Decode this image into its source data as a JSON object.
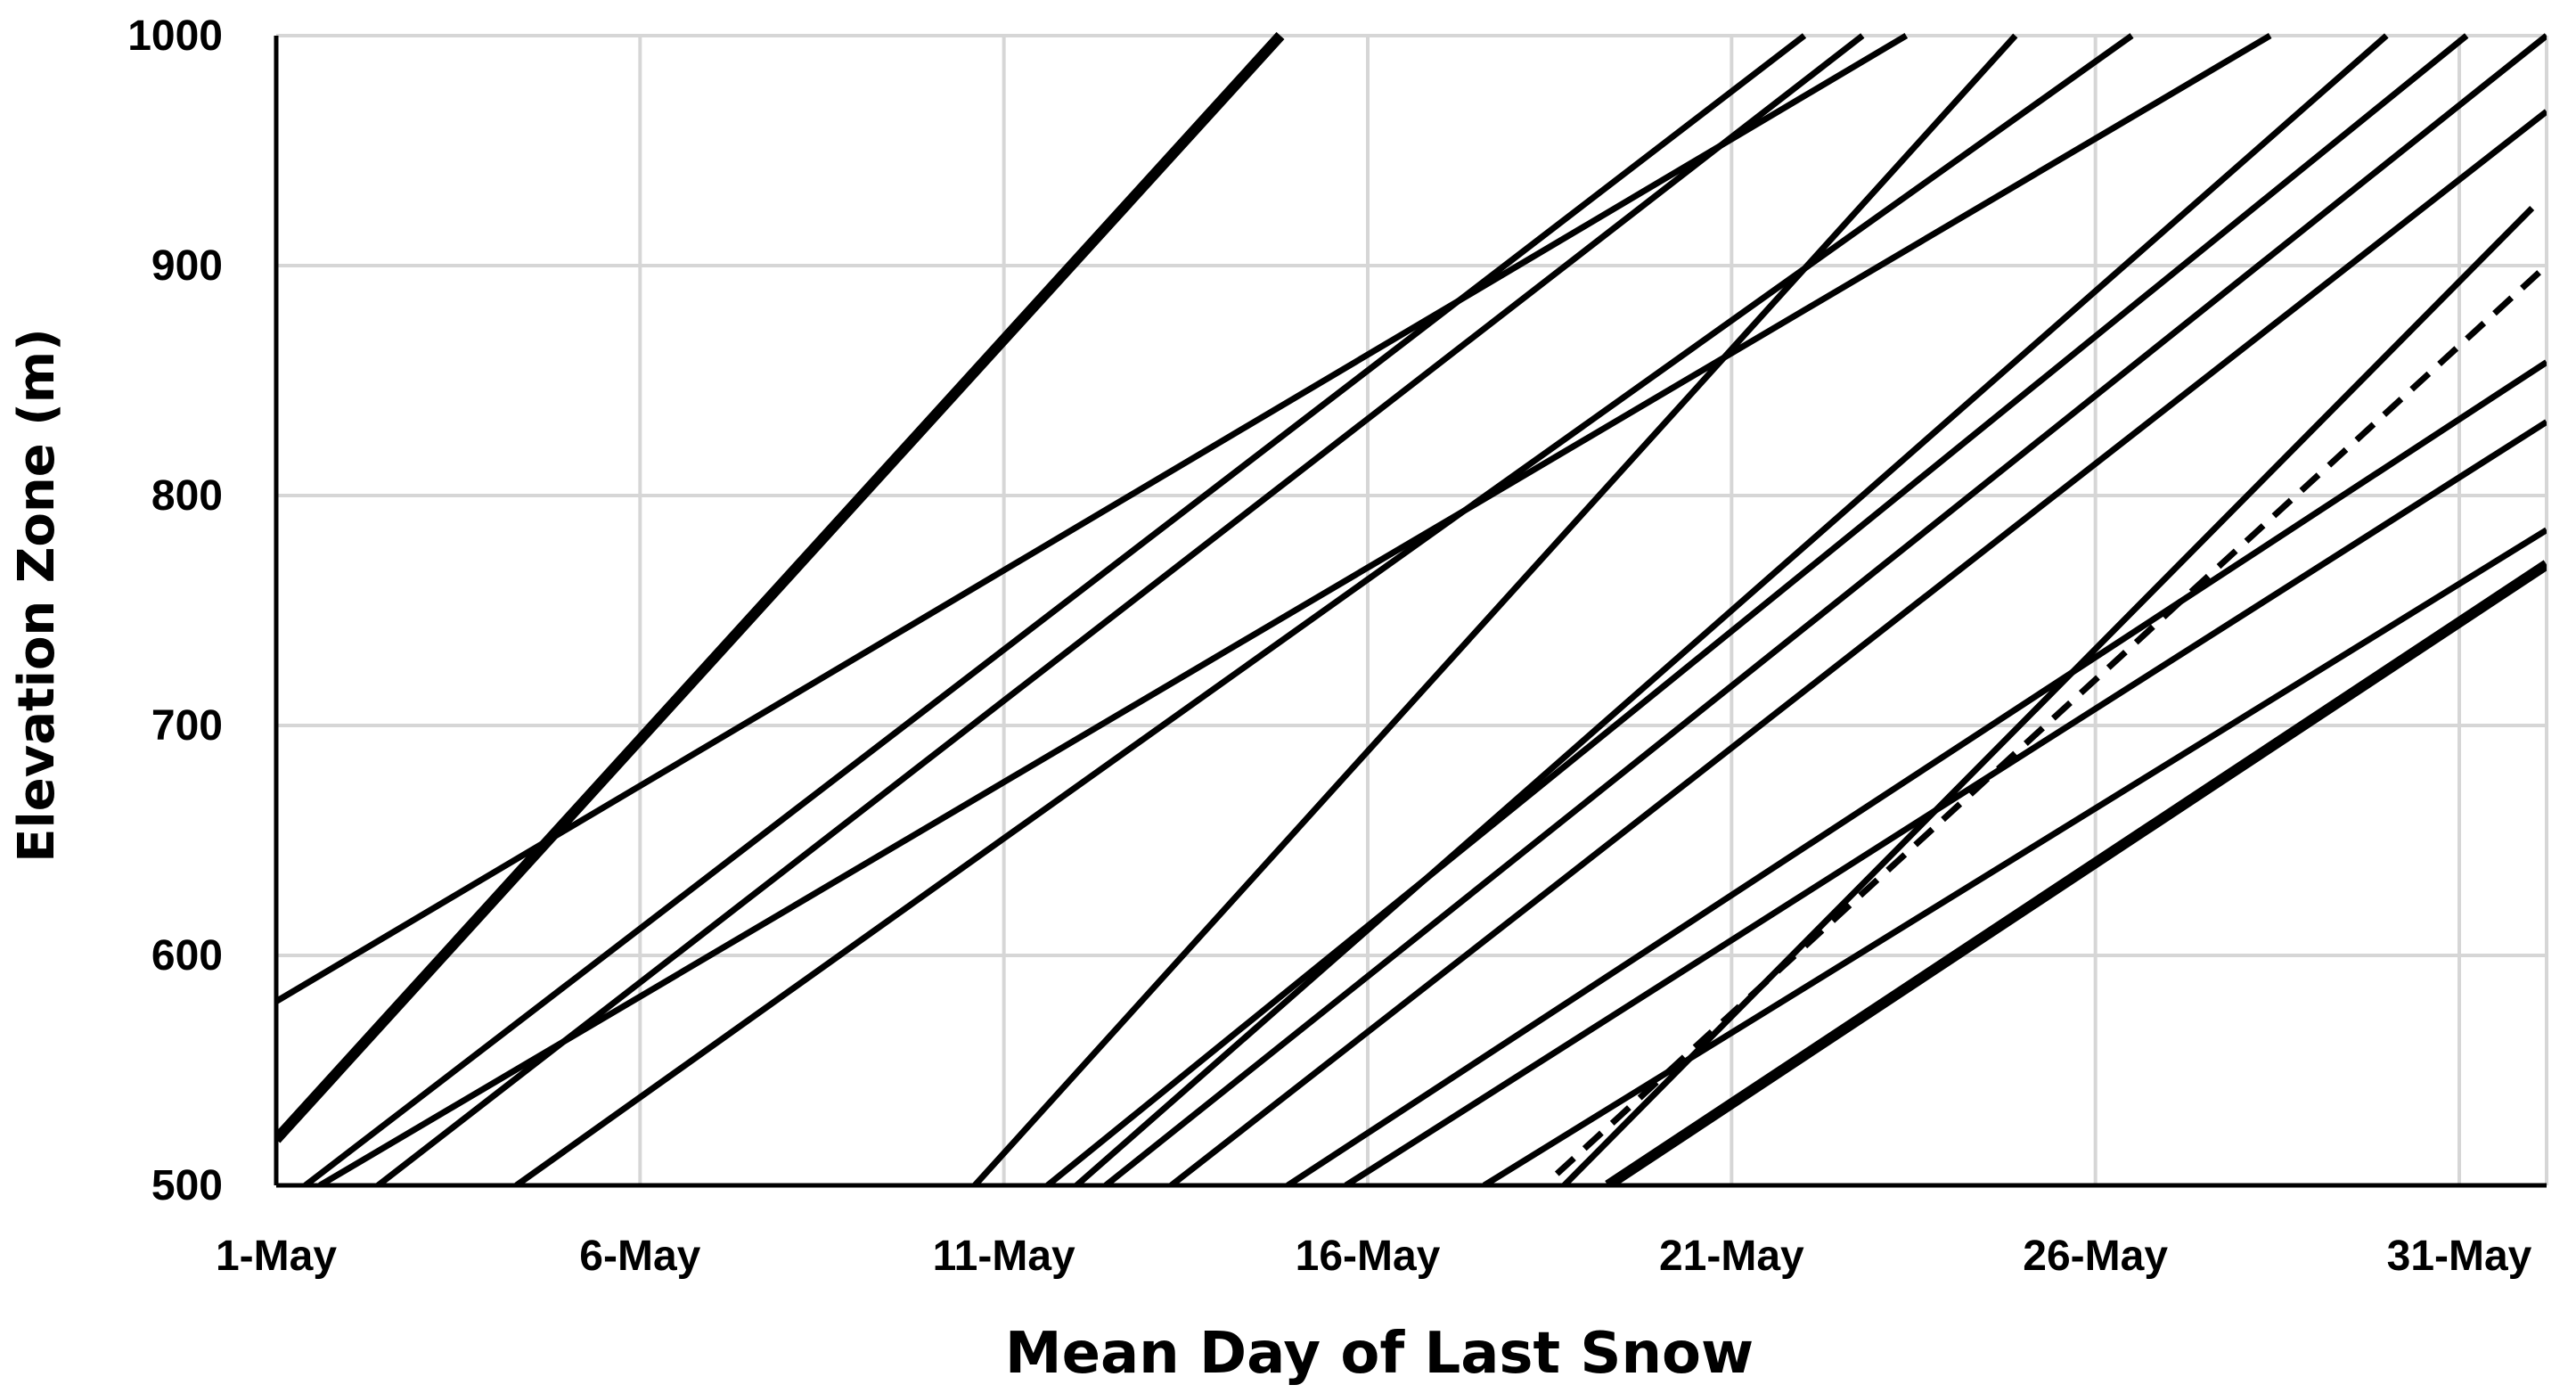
{
  "chart_data": {
    "type": "line",
    "title": "",
    "xlabel": "Mean Day of Last Snow",
    "ylabel": "Elevation Zone (m)",
    "x_unit": "day of May",
    "xlim": [
      1,
      32.2
    ],
    "ylim": [
      500,
      1000
    ],
    "x_ticks": [
      {
        "value": 1,
        "label": "1-May"
      },
      {
        "value": 6,
        "label": "6-May"
      },
      {
        "value": 11,
        "label": "11-May"
      },
      {
        "value": 16,
        "label": "16-May"
      },
      {
        "value": 21,
        "label": "21-May"
      },
      {
        "value": 26,
        "label": "26-May"
      },
      {
        "value": 31,
        "label": "31-May"
      }
    ],
    "y_ticks": [
      500,
      600,
      700,
      800,
      900,
      1000
    ],
    "grid": true,
    "legend": "none",
    "series": [
      {
        "style": "thick",
        "points": [
          [
            1.0,
            520
          ],
          [
            14.8,
            1000
          ]
        ]
      },
      {
        "style": "solid",
        "points": [
          [
            1.0,
            580
          ],
          [
            23.4,
            1000
          ]
        ]
      },
      {
        "style": "solid",
        "points": [
          [
            1.4,
            500
          ],
          [
            22.0,
            1000
          ]
        ]
      },
      {
        "style": "solid",
        "points": [
          [
            2.4,
            500
          ],
          [
            22.8,
            1000
          ]
        ]
      },
      {
        "style": "solid",
        "points": [
          [
            4.3,
            500
          ],
          [
            26.5,
            1000
          ]
        ]
      },
      {
        "style": "solid",
        "points": [
          [
            1.6,
            500
          ],
          [
            28.4,
            1000
          ]
        ]
      },
      {
        "style": "solid",
        "points": [
          [
            10.6,
            500
          ],
          [
            24.9,
            1000
          ]
        ]
      },
      {
        "style": "solid",
        "points": [
          [
            11.6,
            500
          ],
          [
            31.1,
            1000
          ]
        ]
      },
      {
        "style": "solid",
        "points": [
          [
            12.4,
            500
          ],
          [
            32.2,
            1000
          ]
        ]
      },
      {
        "style": "solid",
        "points": [
          [
            13.3,
            500
          ],
          [
            32.2,
            967
          ]
        ]
      },
      {
        "style": "solid",
        "points": [
          [
            12.0,
            500
          ],
          [
            30.0,
            1000
          ]
        ]
      },
      {
        "style": "solid",
        "points": [
          [
            14.9,
            500
          ],
          [
            32.2,
            858
          ]
        ]
      },
      {
        "style": "solid",
        "points": [
          [
            15.7,
            500
          ],
          [
            32.2,
            832
          ]
        ]
      },
      {
        "style": "solid",
        "points": [
          [
            17.6,
            500
          ],
          [
            32.2,
            785
          ]
        ]
      },
      {
        "style": "solid",
        "points": [
          [
            18.7,
            500
          ],
          [
            32.0,
            925
          ]
        ]
      },
      {
        "style": "dashed",
        "points": [
          [
            18.6,
            505
          ],
          [
            32.2,
            900
          ]
        ]
      },
      {
        "style": "thick",
        "points": [
          [
            19.3,
            500
          ],
          [
            32.2,
            770
          ]
        ]
      }
    ]
  }
}
